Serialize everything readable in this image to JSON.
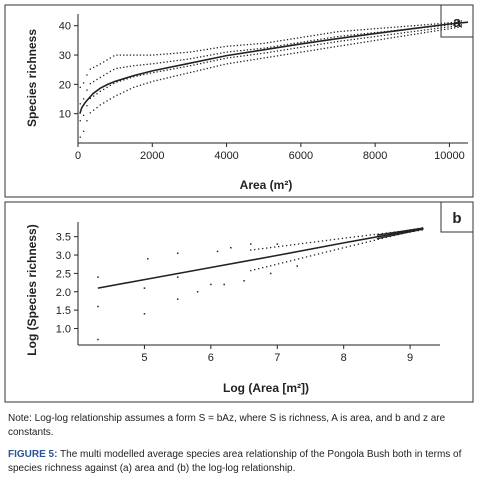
{
  "chart_data": [
    {
      "type": "scatter",
      "panel_label": "a",
      "xlabel": "Area (m²)",
      "ylabel": "Species richness",
      "xlim": [
        0,
        10500
      ],
      "ylim": [
        0,
        44
      ],
      "xticks": [
        0,
        2000,
        4000,
        6000,
        8000,
        10000
      ],
      "yticks": [
        10,
        20,
        30,
        40
      ],
      "grid": false,
      "series": [
        {
          "role": "modelled-average-curve",
          "x": [
            50,
            100,
            200,
            400,
            600,
            800,
            1000,
            1500,
            2000,
            3000,
            4000,
            5000,
            6000,
            7000,
            8000,
            9000,
            10000,
            10500
          ],
          "y": [
            10.0,
            12.0,
            13.9,
            16.8,
            18.7,
            20.0,
            21.0,
            23.0,
            24.6,
            27.2,
            29.8,
            31.8,
            33.8,
            35.6,
            37.3,
            39.0,
            40.6,
            41.2
          ]
        },
        {
          "role": "upper-envelope",
          "x": [
            100,
            300,
            600,
            1000,
            1500,
            2000,
            3000,
            4000,
            5000,
            6000,
            7000,
            8000,
            9000,
            10000,
            10500
          ],
          "y": [
            19,
            25,
            27,
            30,
            30,
            30,
            31,
            33,
            34,
            36,
            38,
            39,
            40,
            41,
            42
          ]
        },
        {
          "role": "lower-envelope",
          "x": [
            100,
            300,
            600,
            1000,
            1500,
            2000,
            3000,
            4000,
            5000,
            6000,
            7000,
            8000,
            9000,
            10000,
            10500
          ],
          "y": [
            2,
            10,
            13,
            16,
            19,
            21,
            24,
            27,
            29,
            31,
            33,
            35,
            37,
            39,
            40
          ]
        }
      ]
    },
    {
      "type": "scatter",
      "panel_label": "b",
      "xlabel": "Log (Area [m²])",
      "ylabel": "Log (Species richness)",
      "xlim": [
        4.0,
        9.45
      ],
      "ylim": [
        0.55,
        3.9
      ],
      "xticks": [
        5,
        6,
        7,
        8,
        9
      ],
      "yticks": [
        1.0,
        1.5,
        2.0,
        2.5,
        3.0,
        3.5
      ],
      "grid": false,
      "series": [
        {
          "role": "modelled-average-line",
          "x": [
            4.3,
            5.0,
            6.0,
            7.0,
            8.0,
            8.7,
            9.2
          ],
          "y": [
            2.1,
            2.33,
            2.66,
            2.99,
            3.33,
            3.56,
            3.72
          ]
        },
        {
          "role": "sample-points",
          "x": [
            4.3,
            4.3,
            4.3,
            5.0,
            5.0,
            5.05,
            5.5,
            5.5,
            5.5,
            5.8,
            6.0,
            6.1,
            6.2,
            6.3,
            6.5,
            6.6,
            6.9,
            7.0,
            7.3
          ],
          "y": [
            0.7,
            1.6,
            2.4,
            1.4,
            2.1,
            2.9,
            1.8,
            2.4,
            3.05,
            2.0,
            2.2,
            3.1,
            2.2,
            3.2,
            2.3,
            3.3,
            2.5,
            3.3,
            2.7
          ]
        }
      ]
    }
  ],
  "note": "Note: Log-log relationship assumes a form S = bAz, where S is richness, A is area, and b and z are constants.",
  "caption": {
    "label": "FIGURE 5:",
    "text": " The multi modelled average species area relationship of the Pongola Bush both in terms of species richness against (a) area and (b) the log-log relationship."
  },
  "colors": {
    "ink": "#222222",
    "caption_label": "#2a5599"
  }
}
